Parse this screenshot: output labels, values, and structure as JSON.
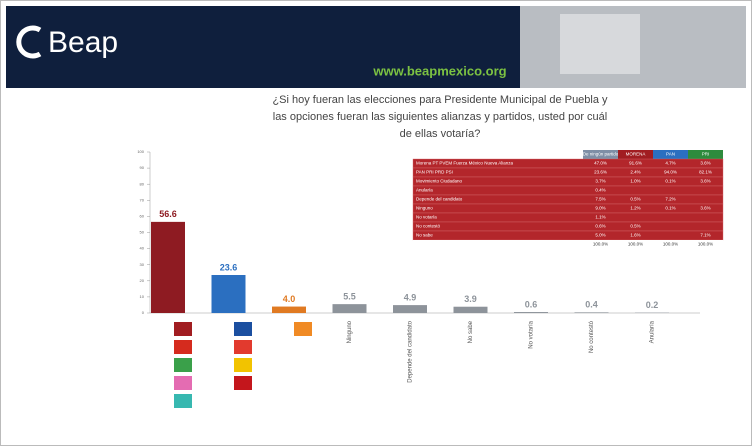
{
  "header": {
    "logo": "Beap",
    "website": "www.beapmexico.org"
  },
  "chart_data": {
    "type": "bar",
    "title": "¿Si hoy fueran las elecciones para Presidente Municipal de Puebla y las opciones fueran las siguientes alianzas y partidos, usted por cuál de ellas votaría?",
    "categories": [
      null,
      null,
      null,
      "Ninguno",
      "Depende del candidato",
      "No sabe",
      "No votaría",
      "No contestó",
      "Anularía"
    ],
    "values": [
      56.6,
      23.6,
      4.0,
      5.5,
      4.9,
      3.9,
      0.6,
      0.4,
      0.2
    ],
    "value_labels": [
      "56.6",
      "23.6",
      "4.0",
      "5.5",
      "4.9",
      "3.9",
      "0.6",
      "0.4",
      "0.2"
    ],
    "colors": [
      "#8e1b22",
      "#2b6fc0",
      "#e07a22",
      "#8d939a",
      "#8d939a",
      "#8d939a",
      "#8d939a",
      "#8d939a",
      "#8d939a"
    ],
    "ylim": [
      0,
      100
    ],
    "yticks": [
      0,
      10,
      20,
      30,
      40,
      50,
      60,
      70,
      80,
      90,
      100
    ]
  },
  "table": {
    "header": [
      "De ningún partido",
      "MORENA",
      "PAN",
      "PRI"
    ],
    "rows": [
      [
        "Morena PT PVEM Fuerza México Nueva Alianza",
        "47.0%",
        "91.6%",
        "4.7%",
        "3.6%"
      ],
      [
        "PAN PRI PRD PSI",
        "23.6%",
        "2.4%",
        "94.0%",
        "82.1%"
      ],
      [
        "Movimiento Ciudadano",
        "3.7%",
        "1.0%",
        "0.1%",
        "3.6%"
      ],
      [
        "Anularía",
        "0.4%",
        null,
        null,
        null
      ],
      [
        "Depende del candidato",
        "7.5%",
        "0.5%",
        "7.2%",
        null
      ],
      [
        "Ninguno",
        "9.0%",
        "1.2%",
        "0.1%",
        "3.6%"
      ],
      [
        "No votaría",
        "1.1%",
        null,
        null,
        null
      ],
      [
        "No contestó",
        "0.6%",
        "0.5%",
        null,
        null
      ],
      [
        "No sabe",
        "5.0%",
        "1.6%",
        null,
        "7.1%"
      ],
      [
        null,
        "100.0%",
        "100.0%",
        "100.0%",
        "100.0%"
      ]
    ]
  }
}
